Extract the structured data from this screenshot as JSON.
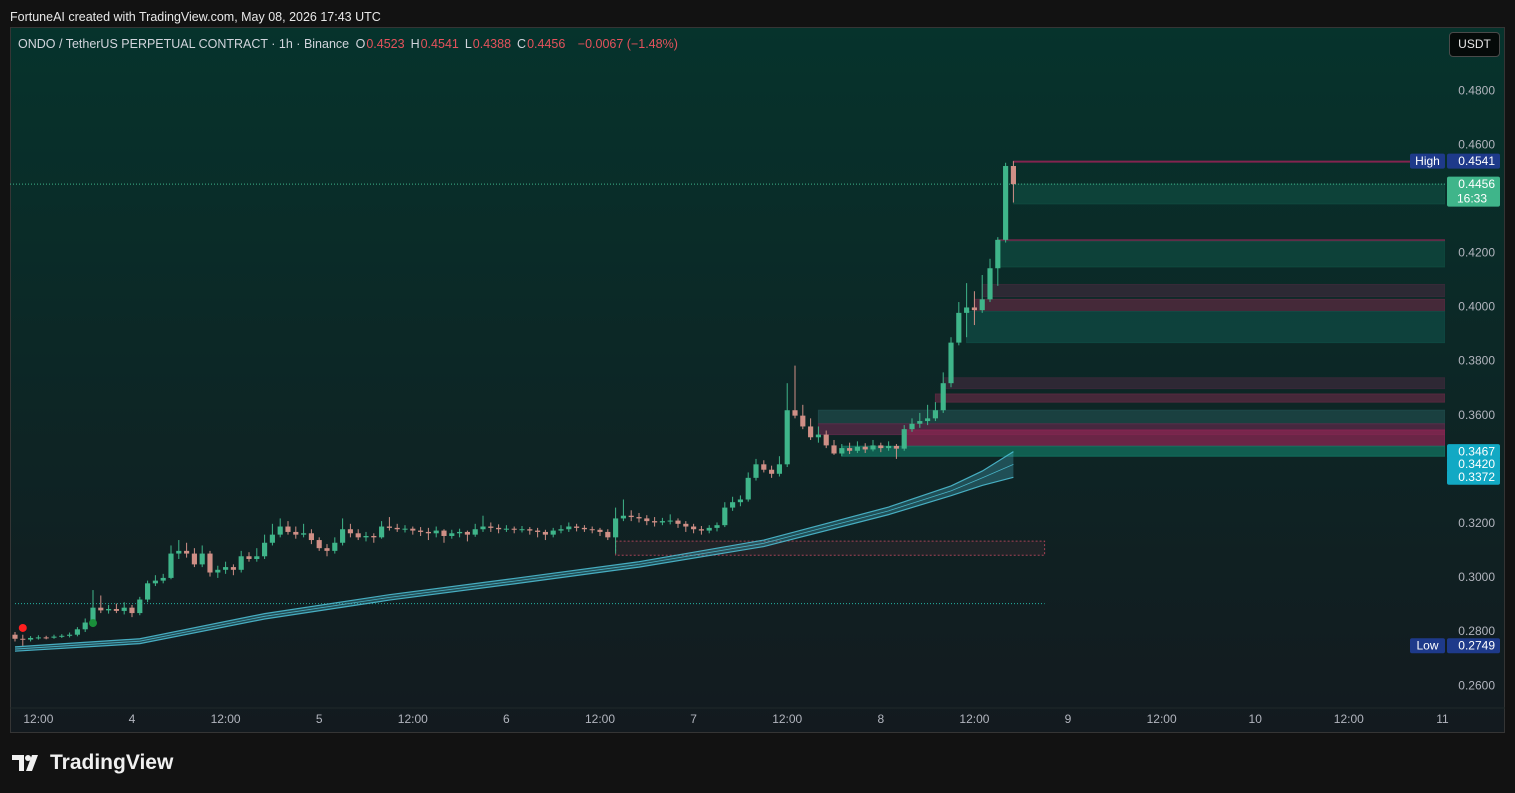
{
  "header": "FortuneAI created with TradingView.com, May 08, 2026 17:43 UTC",
  "footer_logo": "TradingView",
  "currency_button": "USDT",
  "chart_data": {
    "type": "candlestick",
    "title": "ONDO / TetherUS PERPETUAL CONTRACT · 1h · Binance",
    "ohlc_legend": [
      {
        "key": "O",
        "value": "0.4523"
      },
      {
        "key": "H",
        "value": "0.4541"
      },
      {
        "key": "L",
        "value": "0.4388"
      },
      {
        "key": "C",
        "value": "0.4456"
      }
    ],
    "change": "−0.0067 (−1.48%)",
    "up_color": "#3fb58a",
    "down_color": "#cf8f86",
    "candles": [
      [
        0.279,
        0.28,
        0.2765,
        0.2775
      ],
      [
        0.2775,
        0.279,
        0.2749,
        0.2772
      ],
      [
        0.2772,
        0.2785,
        0.2765,
        0.2778
      ],
      [
        0.2778,
        0.2788,
        0.2772,
        0.278
      ],
      [
        0.278,
        0.2786,
        0.2773,
        0.2779
      ],
      [
        0.2779,
        0.279,
        0.2775,
        0.2783
      ],
      [
        0.2783,
        0.2792,
        0.2778,
        0.2786
      ],
      [
        0.2786,
        0.2798,
        0.278,
        0.279
      ],
      [
        0.279,
        0.2818,
        0.2784,
        0.281
      ],
      [
        0.281,
        0.285,
        0.28,
        0.2835
      ],
      [
        0.2835,
        0.2955,
        0.2828,
        0.289
      ],
      [
        0.289,
        0.2935,
        0.287,
        0.288
      ],
      [
        0.288,
        0.29,
        0.2868,
        0.2885
      ],
      [
        0.2885,
        0.2905,
        0.287,
        0.2878
      ],
      [
        0.2878,
        0.291,
        0.2865,
        0.289
      ],
      [
        0.289,
        0.29,
        0.2855,
        0.287
      ],
      [
        0.287,
        0.293,
        0.2862,
        0.292
      ],
      [
        0.292,
        0.299,
        0.291,
        0.298
      ],
      [
        0.298,
        0.301,
        0.297,
        0.299
      ],
      [
        0.299,
        0.3015,
        0.298,
        0.3
      ],
      [
        0.3,
        0.312,
        0.2995,
        0.309
      ],
      [
        0.309,
        0.314,
        0.307,
        0.31
      ],
      [
        0.31,
        0.313,
        0.3075,
        0.309
      ],
      [
        0.309,
        0.311,
        0.304,
        0.305
      ],
      [
        0.305,
        0.312,
        0.304,
        0.309
      ],
      [
        0.309,
        0.31,
        0.3005,
        0.302
      ],
      [
        0.302,
        0.3045,
        0.3,
        0.303
      ],
      [
        0.303,
        0.306,
        0.3015,
        0.304
      ],
      [
        0.304,
        0.305,
        0.301,
        0.303
      ],
      [
        0.303,
        0.31,
        0.302,
        0.308
      ],
      [
        0.308,
        0.3095,
        0.306,
        0.307
      ],
      [
        0.307,
        0.311,
        0.306,
        0.308
      ],
      [
        0.308,
        0.316,
        0.307,
        0.313
      ],
      [
        0.313,
        0.32,
        0.312,
        0.316
      ],
      [
        0.316,
        0.322,
        0.315,
        0.319
      ],
      [
        0.319,
        0.321,
        0.316,
        0.317
      ],
      [
        0.317,
        0.319,
        0.3145,
        0.316
      ],
      [
        0.316,
        0.32,
        0.315,
        0.3165
      ],
      [
        0.3165,
        0.318,
        0.3125,
        0.314
      ],
      [
        0.314,
        0.315,
        0.31,
        0.311
      ],
      [
        0.311,
        0.3125,
        0.308,
        0.31
      ],
      [
        0.31,
        0.315,
        0.309,
        0.313
      ],
      [
        0.313,
        0.322,
        0.312,
        0.318
      ],
      [
        0.318,
        0.32,
        0.315,
        0.3165
      ],
      [
        0.3165,
        0.318,
        0.314,
        0.315
      ],
      [
        0.315,
        0.317,
        0.3135,
        0.3155
      ],
      [
        0.3155,
        0.3165,
        0.313,
        0.315
      ],
      [
        0.315,
        0.321,
        0.3145,
        0.319
      ],
      [
        0.319,
        0.3225,
        0.3175,
        0.3185
      ],
      [
        0.3185,
        0.32,
        0.317,
        0.318
      ],
      [
        0.318,
        0.3195,
        0.3168,
        0.3182
      ],
      [
        0.3182,
        0.319,
        0.316,
        0.3175
      ],
      [
        0.3175,
        0.3188,
        0.3155,
        0.317
      ],
      [
        0.317,
        0.3185,
        0.314,
        0.3165
      ],
      [
        0.3165,
        0.319,
        0.315,
        0.3175
      ],
      [
        0.3175,
        0.318,
        0.313,
        0.3155
      ],
      [
        0.3155,
        0.3178,
        0.3145,
        0.3165
      ],
      [
        0.3165,
        0.3182,
        0.315,
        0.317
      ],
      [
        0.317,
        0.3175,
        0.3135,
        0.316
      ],
      [
        0.316,
        0.32,
        0.3152,
        0.318
      ],
      [
        0.318,
        0.323,
        0.317,
        0.319
      ],
      [
        0.319,
        0.3205,
        0.317,
        0.3185
      ],
      [
        0.3185,
        0.3198,
        0.3165,
        0.318
      ],
      [
        0.318,
        0.3195,
        0.317,
        0.3182
      ],
      [
        0.3182,
        0.319,
        0.3165,
        0.3178
      ],
      [
        0.3178,
        0.3192,
        0.3168,
        0.318
      ],
      [
        0.318,
        0.3188,
        0.316,
        0.3175
      ],
      [
        0.3175,
        0.3185,
        0.315,
        0.317
      ],
      [
        0.317,
        0.3178,
        0.314,
        0.316
      ],
      [
        0.316,
        0.3185,
        0.315,
        0.3175
      ],
      [
        0.3175,
        0.3195,
        0.3165,
        0.318
      ],
      [
        0.318,
        0.3205,
        0.317,
        0.319
      ],
      [
        0.319,
        0.32,
        0.3172,
        0.3185
      ],
      [
        0.3185,
        0.3195,
        0.317,
        0.318
      ],
      [
        0.318,
        0.319,
        0.3165,
        0.3178
      ],
      [
        0.3178,
        0.3185,
        0.3155,
        0.317
      ],
      [
        0.317,
        0.318,
        0.314,
        0.315
      ],
      [
        0.315,
        0.326,
        0.309,
        0.322
      ],
      [
        0.322,
        0.329,
        0.321,
        0.323
      ],
      [
        0.323,
        0.325,
        0.321,
        0.3225
      ],
      [
        0.3225,
        0.324,
        0.3205,
        0.322
      ],
      [
        0.322,
        0.3232,
        0.3195,
        0.321
      ],
      [
        0.321,
        0.3225,
        0.319,
        0.3205
      ],
      [
        0.3205,
        0.3222,
        0.3195,
        0.321
      ],
      [
        0.321,
        0.3235,
        0.3198,
        0.3212
      ],
      [
        0.3212,
        0.322,
        0.3185,
        0.32
      ],
      [
        0.32,
        0.321,
        0.317,
        0.319
      ],
      [
        0.319,
        0.32,
        0.3165,
        0.318
      ],
      [
        0.318,
        0.3192,
        0.316,
        0.3175
      ],
      [
        0.3175,
        0.3195,
        0.3165,
        0.3185
      ],
      [
        0.3185,
        0.3205,
        0.3172,
        0.3195
      ],
      [
        0.3195,
        0.328,
        0.3188,
        0.326
      ],
      [
        0.326,
        0.33,
        0.3248,
        0.328
      ],
      [
        0.328,
        0.3305,
        0.3265,
        0.329
      ],
      [
        0.329,
        0.339,
        0.3282,
        0.337
      ],
      [
        0.337,
        0.344,
        0.336,
        0.342
      ],
      [
        0.342,
        0.3435,
        0.339,
        0.34
      ],
      [
        0.34,
        0.3415,
        0.337,
        0.3385
      ],
      [
        0.3385,
        0.345,
        0.3375,
        0.342
      ],
      [
        0.342,
        0.372,
        0.341,
        0.362
      ],
      [
        0.362,
        0.3785,
        0.359,
        0.36
      ],
      [
        0.36,
        0.364,
        0.355,
        0.356
      ],
      [
        0.356,
        0.359,
        0.351,
        0.352
      ],
      [
        0.352,
        0.356,
        0.35,
        0.353
      ],
      [
        0.353,
        0.3545,
        0.348,
        0.349
      ],
      [
        0.349,
        0.351,
        0.3455,
        0.346
      ],
      [
        0.346,
        0.3495,
        0.345,
        0.348
      ],
      [
        0.348,
        0.35,
        0.3458,
        0.347
      ],
      [
        0.347,
        0.3505,
        0.3462,
        0.3485
      ],
      [
        0.3485,
        0.3498,
        0.3462,
        0.3475
      ],
      [
        0.3475,
        0.351,
        0.3468,
        0.349
      ],
      [
        0.349,
        0.35,
        0.3465,
        0.348
      ],
      [
        0.348,
        0.3505,
        0.347,
        0.3488
      ],
      [
        0.3488,
        0.3495,
        0.344,
        0.3478
      ],
      [
        0.3478,
        0.3565,
        0.347,
        0.355
      ],
      [
        0.355,
        0.359,
        0.354,
        0.357
      ],
      [
        0.357,
        0.361,
        0.3555,
        0.358
      ],
      [
        0.358,
        0.364,
        0.3565,
        0.359
      ],
      [
        0.359,
        0.365,
        0.358,
        0.362
      ],
      [
        0.362,
        0.376,
        0.361,
        0.372
      ],
      [
        0.372,
        0.389,
        0.3705,
        0.387
      ],
      [
        0.387,
        0.402,
        0.386,
        0.398
      ],
      [
        0.398,
        0.409,
        0.389,
        0.4
      ],
      [
        0.4,
        0.406,
        0.3935,
        0.399
      ],
      [
        0.399,
        0.412,
        0.398,
        0.403
      ],
      [
        0.403,
        0.418,
        0.402,
        0.4145
      ],
      [
        0.4145,
        0.426,
        0.408,
        0.425
      ],
      [
        0.425,
        0.4535,
        0.424,
        0.4523
      ],
      [
        0.4523,
        0.4541,
        0.4388,
        0.4456
      ]
    ],
    "xlim": [
      -0.64,
      183.33
    ],
    "xticks": [
      {
        "value": 3,
        "label": "12:00"
      },
      {
        "value": 15,
        "label": "4"
      },
      {
        "value": 27,
        "label": "12:00"
      },
      {
        "value": 39,
        "label": "5"
      },
      {
        "value": 51,
        "label": "12:00"
      },
      {
        "value": 63,
        "label": "6"
      },
      {
        "value": 75,
        "label": "12:00"
      },
      {
        "value": 87,
        "label": "7"
      },
      {
        "value": 99,
        "label": "12:00"
      },
      {
        "value": 111,
        "label": "8"
      },
      {
        "value": 123,
        "label": "12:00"
      },
      {
        "value": 135,
        "label": "9"
      },
      {
        "value": 147,
        "label": "12:00"
      },
      {
        "value": 159,
        "label": "10"
      },
      {
        "value": 171,
        "label": "12:00"
      },
      {
        "value": 183,
        "label": "11"
      }
    ],
    "ylim": [
      0.2519,
      0.5037
    ],
    "yticks": [
      {
        "value": 0.26,
        "label": "0.2600"
      },
      {
        "value": 0.28,
        "label": "0.2800"
      },
      {
        "value": 0.3,
        "label": "0.3000"
      },
      {
        "value": 0.32,
        "label": "0.3200"
      },
      {
        "value": 0.36,
        "label": "0.3600"
      },
      {
        "value": 0.38,
        "label": "0.3800"
      },
      {
        "value": 0.4,
        "label": "0.4000"
      },
      {
        "value": 0.42,
        "label": "0.4200"
      },
      {
        "value": 0.46,
        "label": "0.4600"
      },
      {
        "value": 0.48,
        "label": "0.4800"
      }
    ],
    "grid": false,
    "ribbon": {
      "color": "#4fc3d9",
      "x": [
        0,
        16,
        32,
        48,
        64,
        80,
        96,
        112,
        120,
        124,
        128
      ],
      "upper": [
        0.2745,
        0.2775,
        0.2868,
        0.2938,
        0.2998,
        0.306,
        0.314,
        0.3262,
        0.334,
        0.3395,
        0.3467
      ],
      "middle": [
        0.2737,
        0.2766,
        0.2858,
        0.2928,
        0.2988,
        0.305,
        0.3128,
        0.3248,
        0.3322,
        0.337,
        0.342
      ],
      "lower": [
        0.2729,
        0.2757,
        0.2848,
        0.2918,
        0.2978,
        0.304,
        0.3116,
        0.3234,
        0.3304,
        0.3342,
        0.3372
      ]
    },
    "price_lines": [
      {
        "value": 0.4456,
        "color": "#3fb58a"
      },
      {
        "value": 0.2905,
        "start": 0,
        "end": 132,
        "color": "#26b5a5"
      }
    ],
    "boxes": [
      {
        "start": 77,
        "end": 132,
        "low": 0.3084,
        "high": 0.3136,
        "color": "#e0506a"
      }
    ],
    "zones": [
      {
        "start": 128,
        "low": 0.4538,
        "high": 0.4541,
        "color": "#8a2552"
      },
      {
        "start": 128,
        "low": 0.4383,
        "high": 0.4456,
        "color": "#0f4a3f"
      },
      {
        "start": 126,
        "low": 0.4245,
        "high": 0.425,
        "color": "#8a2552"
      },
      {
        "start": 126,
        "low": 0.415,
        "high": 0.4245,
        "color": "#0f4a3f"
      },
      {
        "start": 124,
        "low": 0.404,
        "high": 0.4085,
        "color": "#3a2a3a"
      },
      {
        "start": 123,
        "low": 0.3985,
        "high": 0.403,
        "color": "#5a2a40"
      },
      {
        "start": 122,
        "low": 0.387,
        "high": 0.3985,
        "color": "#0f4a44"
      },
      {
        "start": 119,
        "low": 0.37,
        "high": 0.374,
        "color": "#3a2a3a"
      },
      {
        "start": 118,
        "low": 0.365,
        "high": 0.368,
        "color": "#5a2a40"
      },
      {
        "start": 103,
        "low": 0.357,
        "high": 0.362,
        "color": "#1f4a4a"
      },
      {
        "start": 103,
        "low": 0.353,
        "high": 0.357,
        "color": "#5a2a48"
      },
      {
        "start": 114,
        "low": 0.3487,
        "high": 0.3547,
        "color": "#8a2552"
      },
      {
        "start": 106,
        "low": 0.345,
        "high": 0.3487,
        "color": "#12715f"
      }
    ],
    "signals": [
      {
        "index": 1,
        "value": 0.2815,
        "color": "#ff1f1f"
      },
      {
        "index": 10,
        "value": 0.2833,
        "color": "#1a8f3a"
      }
    ],
    "axis_labels": [
      {
        "text": "High",
        "value": 0.4541,
        "label": "0.4541",
        "color": "#1e3a8a"
      },
      {
        "value": 0.4456,
        "label": "0.4456",
        "countdown": "16:33",
        "color": "#3fb58a"
      },
      {
        "value": 0.3467,
        "label": "0.3467",
        "color": "#12a9c4"
      },
      {
        "value": 0.342,
        "label": "0.3420",
        "color": "#12a9c4"
      },
      {
        "value": 0.3372,
        "label": "0.3372",
        "color": "#12a9c4"
      },
      {
        "text": "Low",
        "value": 0.2749,
        "label": "0.2749",
        "color": "#1e3a8a"
      }
    ]
  }
}
